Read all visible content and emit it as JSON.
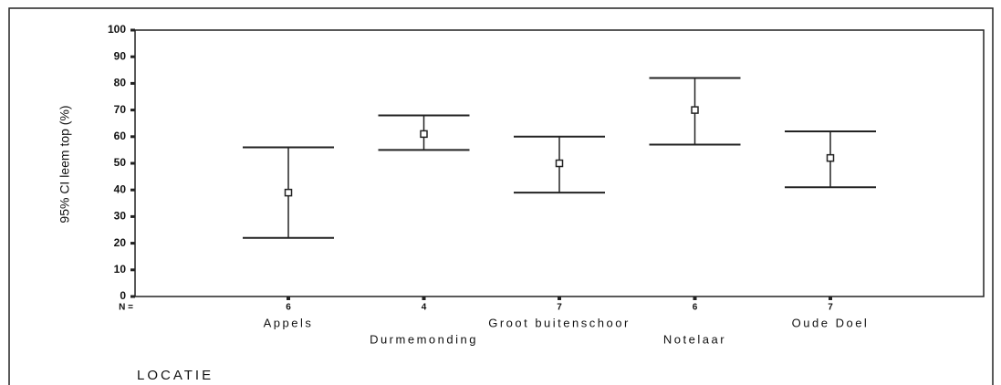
{
  "chart_data": {
    "type": "errorbar",
    "y_label": "95% CI leem top (%)",
    "x_label": "LOCATIE",
    "n_label": "N =",
    "categories": [
      "Appels",
      "Durmemonding",
      "Groot buitenschoor",
      "Notelaar",
      "Oude Doel"
    ],
    "n": [
      6,
      4,
      7,
      6,
      7
    ],
    "values": [
      39,
      61,
      50,
      70,
      52
    ],
    "lower": [
      22,
      55,
      39,
      57,
      41
    ],
    "upper": [
      56,
      68,
      60,
      82,
      62
    ],
    "color": "#222222",
    "ylim": [
      0,
      100
    ],
    "yticks": [
      0,
      10,
      20,
      30,
      40,
      50,
      60,
      70,
      80,
      90,
      100
    ]
  }
}
